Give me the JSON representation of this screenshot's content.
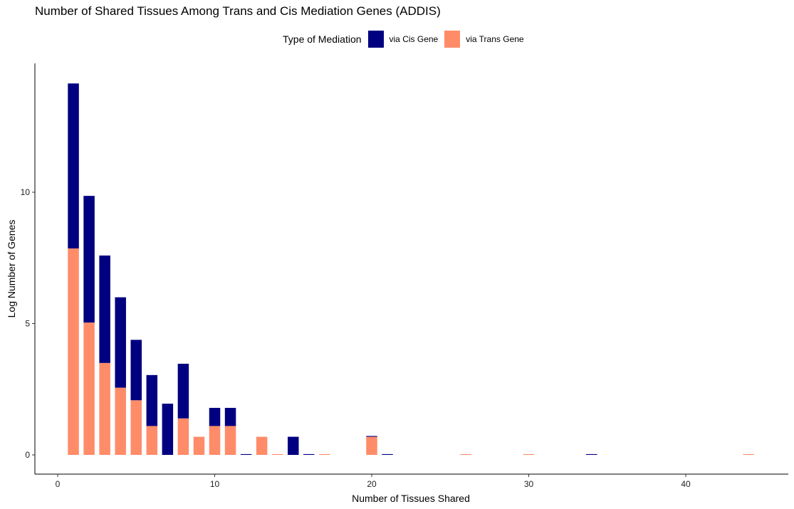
{
  "chart_data": {
    "type": "bar",
    "stacked": true,
    "title": "Number of Shared Tissues Among Trans and Cis Mediation Genes (ADDIS)",
    "xlabel": "Number of Tissues Shared",
    "ylabel": "Log Number of Genes",
    "xlim": [
      -1.5,
      46
    ],
    "ylim": [
      0,
      14.3
    ],
    "x_ticks": [
      0,
      10,
      20,
      30,
      40
    ],
    "y_ticks": [
      0,
      5,
      10
    ],
    "grid": false,
    "legend": {
      "title": "Type of Mediation",
      "position": "top"
    },
    "series": [
      {
        "name": "via Cis Gene",
        "color": "#000080",
        "x": [
          1,
          2,
          3,
          4,
          5,
          6,
          7,
          8,
          10,
          11,
          12,
          15,
          16,
          20,
          21,
          34
        ],
        "values": [
          6.28,
          4.82,
          4.09,
          3.44,
          2.3,
          1.94,
          1.95,
          2.08,
          0.69,
          0.69,
          0.03,
          0.69,
          0.03,
          0.03,
          0.03,
          0.03
        ]
      },
      {
        "name": "via Trans Gene",
        "color": "#FF8C69",
        "x": [
          1,
          2,
          3,
          4,
          5,
          6,
          8,
          9,
          10,
          11,
          13,
          14,
          17,
          20,
          26,
          30,
          44
        ],
        "values": [
          7.86,
          5.04,
          3.5,
          2.56,
          2.08,
          1.1,
          1.39,
          0.69,
          1.1,
          1.1,
          0.69,
          0.03,
          0.03,
          0.69,
          0.03,
          0.03,
          0.03
        ]
      }
    ]
  }
}
